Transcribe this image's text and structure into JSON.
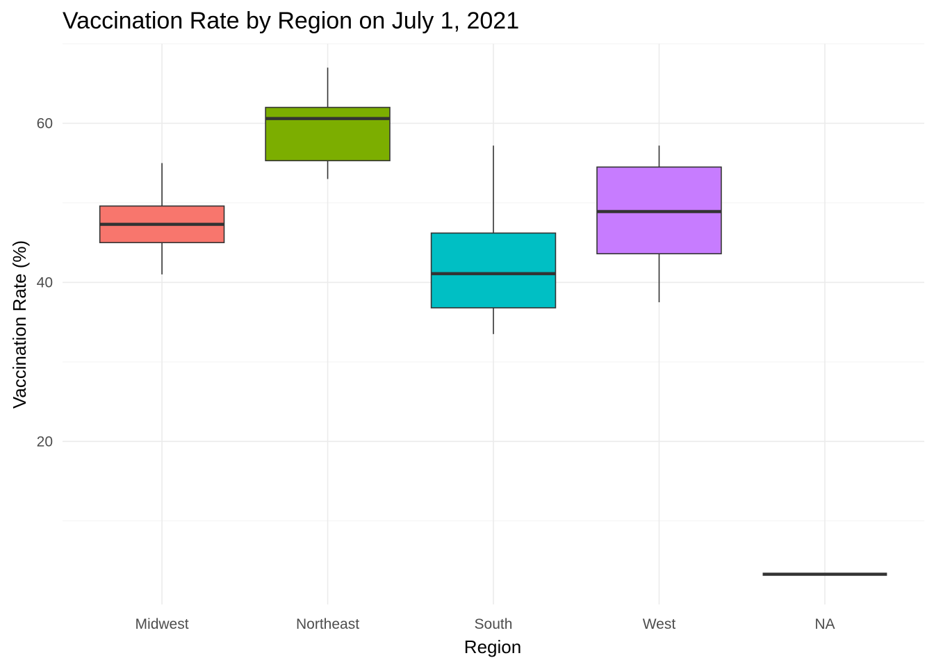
{
  "chart_data": {
    "type": "boxplot",
    "title": "Vaccination Rate by Region on July 1, 2021",
    "xlabel": "Region",
    "ylabel": "Vaccination Rate (%)",
    "ylim": [
      -0.5,
      70
    ],
    "y_ticks": [
      20,
      40,
      60
    ],
    "y_minor_ticks": [
      10,
      30,
      50,
      70
    ],
    "categories": [
      "Midwest",
      "Northeast",
      "South",
      "West",
      "NA"
    ],
    "grid": true,
    "legend": "none",
    "boxes": [
      {
        "category": "Midwest",
        "whisker_low": 41.0,
        "q1": 45.0,
        "median": 47.3,
        "q3": 49.6,
        "whisker_high": 55.0,
        "color": "#F8766D"
      },
      {
        "category": "Northeast",
        "whisker_low": 53.0,
        "q1": 55.3,
        "median": 60.6,
        "q3": 62.0,
        "whisker_high": 67.0,
        "color": "#7CAE00"
      },
      {
        "category": "South",
        "whisker_low": 33.5,
        "q1": 36.8,
        "median": 41.1,
        "q3": 46.2,
        "whisker_high": 57.2,
        "color": "#00BFC4"
      },
      {
        "category": "West",
        "whisker_low": 37.5,
        "q1": 43.6,
        "median": 48.9,
        "q3": 54.5,
        "whisker_high": 57.2,
        "color": "#C77CFF"
      },
      {
        "category": "NA",
        "whisker_low": 3.3,
        "q1": 3.3,
        "median": 3.3,
        "q3": 3.3,
        "whisker_high": 3.3,
        "color": "#7F7F7F"
      }
    ]
  }
}
